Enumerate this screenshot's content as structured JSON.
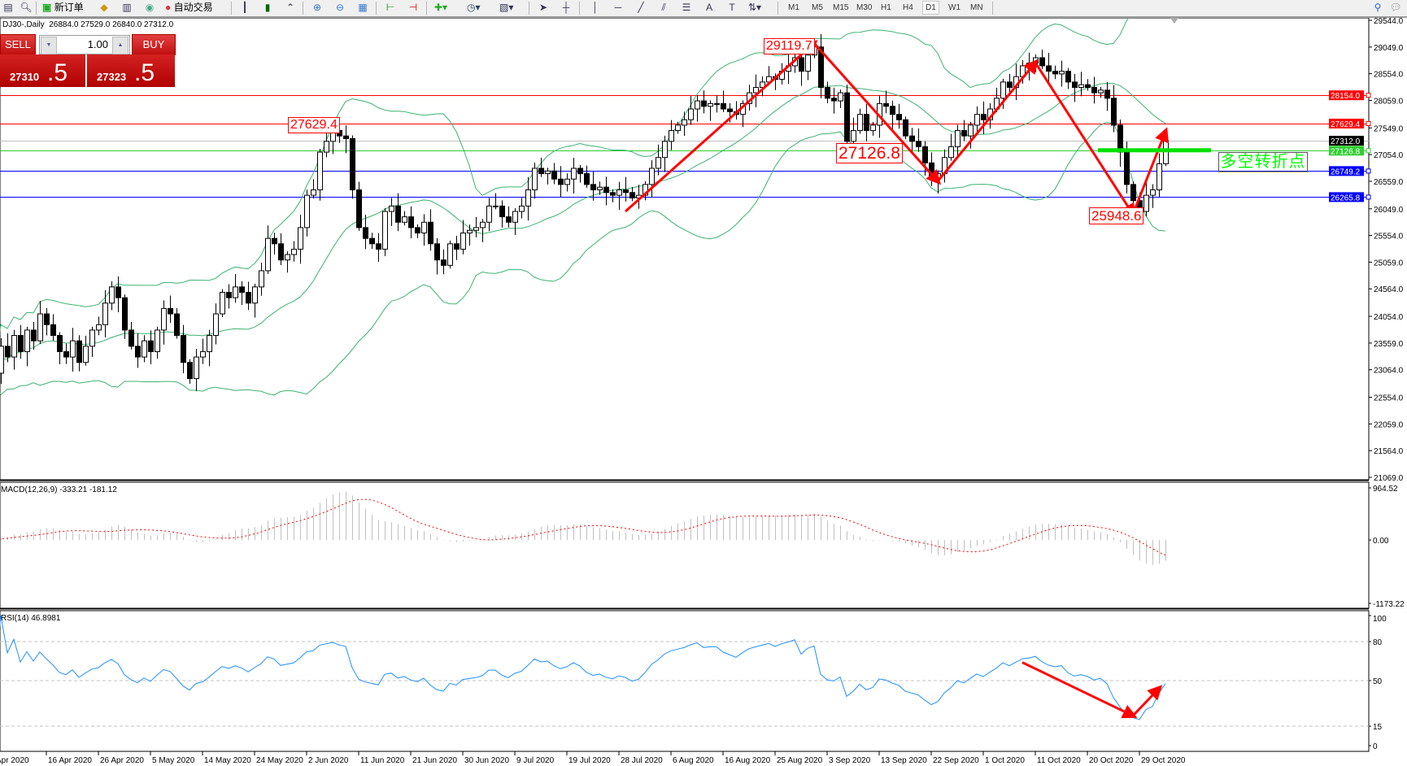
{
  "toolbar": {
    "new_order": "新订单",
    "auto_trading": "自动交易",
    "timeframes": [
      "M1",
      "M5",
      "M15",
      "M30",
      "H1",
      "H4",
      "D1",
      "W1",
      "MN"
    ],
    "active_timeframe": "D1",
    "icons": [
      "new-chart-icon",
      "zoom-icon",
      "new-order-icon",
      "navigator-icon",
      "history-icon",
      "signals-icon",
      "auto-trading-icon",
      "bar-chart-icon",
      "candlestick-icon",
      "line-chart-icon",
      "zoom-in-icon",
      "zoom-out-icon",
      "tile-windows-icon",
      "chart-shift-icon",
      "autoscroll-icon",
      "indicators-icon",
      "periods-icon",
      "templates-icon",
      "cursor-icon",
      "crosshair-icon",
      "vertical-line-icon",
      "horizontal-line-icon",
      "trendline-icon",
      "equidistant-channel-icon",
      "fibonacci-icon",
      "text-icon",
      "text-label-icon",
      "arrows-icon",
      "search-icon",
      "chat-icon"
    ]
  },
  "chart_header": {
    "symbol": "DJ30-,Daily",
    "ohlc": "26884.0 27529.0 26840.0 27312.0"
  },
  "trade_panel": {
    "sell_label": "SELL",
    "buy_label": "BUY",
    "lot": "1.00",
    "bid_main": "27310",
    "bid_frac": ".5",
    "ask_main": "27323",
    "ask_frac": ".5"
  },
  "chart_data": {
    "type": "candlestick",
    "symbol": "DJ30-",
    "timeframe": "Daily",
    "closes": [
      23000,
      23500,
      23300,
      23700,
      23400,
      23800,
      23600,
      24100,
      23900,
      23700,
      23400,
      23300,
      23600,
      23200,
      23500,
      23800,
      23900,
      24300,
      24600,
      24400,
      23800,
      23500,
      23300,
      23600,
      23400,
      23800,
      24200,
      24100,
      23700,
      23200,
      22900,
      23300,
      23400,
      23700,
      24100,
      24500,
      24400,
      24600,
      24500,
      24300,
      24600,
      24900,
      25500,
      25400,
      25100,
      25200,
      25300,
      25700,
      26300,
      26400,
      27100,
      27300,
      27500,
      27400,
      27350,
      26400,
      25700,
      25500,
      25400,
      25300,
      26000,
      26100,
      25800,
      25900,
      25700,
      25600,
      25800,
      25400,
      25100,
      25000,
      25400,
      25300,
      25600,
      25650,
      25700,
      25800,
      26100,
      26100,
      25900,
      25800,
      26000,
      26100,
      26400,
      26800,
      26700,
      26750,
      26600,
      26500,
      26600,
      26800,
      26700,
      26500,
      26400,
      26450,
      26350,
      26300,
      26400,
      26350,
      26250,
      26300,
      26500,
      26800,
      27000,
      27300,
      27500,
      27600,
      27700,
      27900,
      28050,
      27950,
      28000,
      28000,
      27900,
      27850,
      27800,
      28000,
      28200,
      28300,
      28400,
      28500,
      28450,
      28600,
      28700,
      28850,
      28600,
      28900,
      29050,
      28300,
      28100,
      28050,
      28200,
      27300,
      27500,
      27800,
      27500,
      27600,
      28000,
      27950,
      27800,
      27700,
      27400,
      27300,
      27200,
      26900,
      26600,
      26700,
      27000,
      27200,
      27500,
      27400,
      27600,
      27800,
      27700,
      27900,
      28100,
      28400,
      28300,
      28500,
      28700,
      28750,
      28850,
      28700,
      28600,
      28550,
      28600,
      28400,
      28300,
      28350,
      28300,
      28200,
      28250,
      28100,
      27600,
      27100,
      26500,
      26200,
      26000,
      26300,
      26400,
      26884,
      27312
    ],
    "last_candle": {
      "open": 26884.0,
      "high": 27529.0,
      "low": 26840.0,
      "close": 27312.0
    },
    "price_range": [
      21069.0,
      29544.0
    ],
    "price_ticks": [
      "29544.0",
      "29049.0",
      "28554.0",
      "28059.0",
      "27549.0",
      "27054.0",
      "26559.0",
      "26049.0",
      "25554.0",
      "25059.0",
      "24564.0",
      "24054.0",
      "23559.0",
      "23064.0",
      "22554.0",
      "22059.0",
      "21564.0",
      "21069.0"
    ],
    "date_labels": [
      "Apr 2020",
      "16 Apr 2020",
      "26 Apr 2020",
      "5 May 2020",
      "14 May 2020",
      "24 May 2020",
      "2 Jun 2020",
      "11 Jun 2020",
      "21 Jun 2020",
      "30 Jun 2020",
      "9 Jul 2020",
      "19 Jul 2020",
      "28 Jul 2020",
      "6 Aug 2020",
      "16 Aug 2020",
      "25 Aug 2020",
      "3 Sep 2020",
      "13 Sep 2020",
      "22 Sep 2020",
      "1 Oct 2020",
      "11 Oct 2020",
      "20 Oct 2020",
      "29 Oct 2020"
    ],
    "indicators": {
      "bollinger": {
        "period": 20,
        "deviation": 2,
        "color": "#3cb371"
      }
    },
    "levels": [
      {
        "price": 28154.0,
        "label": "28154.0",
        "color": "#ff0000"
      },
      {
        "price": 27629.4,
        "label": "27629.4",
        "color": "#ff0000"
      },
      {
        "price": 27312.0,
        "label": "27312.0",
        "color": "#000000",
        "line": "#c0c0c0"
      },
      {
        "price": 27126.8,
        "label": "27126.8",
        "color": "#32cd32",
        "line": "#32cd32"
      },
      {
        "price": 26749.2,
        "label": "26749.2",
        "color": "#0000ff"
      },
      {
        "price": 26265.8,
        "label": "26265.8",
        "color": "#0000ff"
      }
    ],
    "annotations": {
      "price_labels": [
        "27629.4",
        "29119.7",
        "27126.8",
        "25948.6"
      ],
      "zigzag": [
        [
          97,
          26000
        ],
        [
          126,
          29119.7
        ],
        [
          145,
          26560
        ],
        [
          160,
          28760
        ],
        [
          175,
          25948.6
        ],
        [
          180,
          27480
        ]
      ],
      "pivot_text": "多空转折点",
      "pivot_price": 27126.8,
      "rsi_arrow": [
        [
          158,
          64
        ],
        [
          175,
          23
        ],
        [
          179,
          44
        ]
      ],
      "arrow_color": "#ff0000"
    },
    "macd": {
      "label": "MACD(12,26,9) -333.21 -181.12",
      "params": [
        12,
        26,
        9
      ],
      "range": [
        -1173.22,
        964.52
      ],
      "ticks": [
        "964.52",
        "0.00",
        "-1173.22"
      ],
      "histogram_color": "#c0c0c0",
      "signal_color": "#ff0000"
    },
    "rsi": {
      "label": "RSI(14) 46.8981",
      "period": 14,
      "levels": [
        80,
        50,
        15
      ],
      "ticks": [
        "100",
        "80",
        "50",
        "15",
        "0"
      ],
      "color": "#1e90ff"
    }
  }
}
